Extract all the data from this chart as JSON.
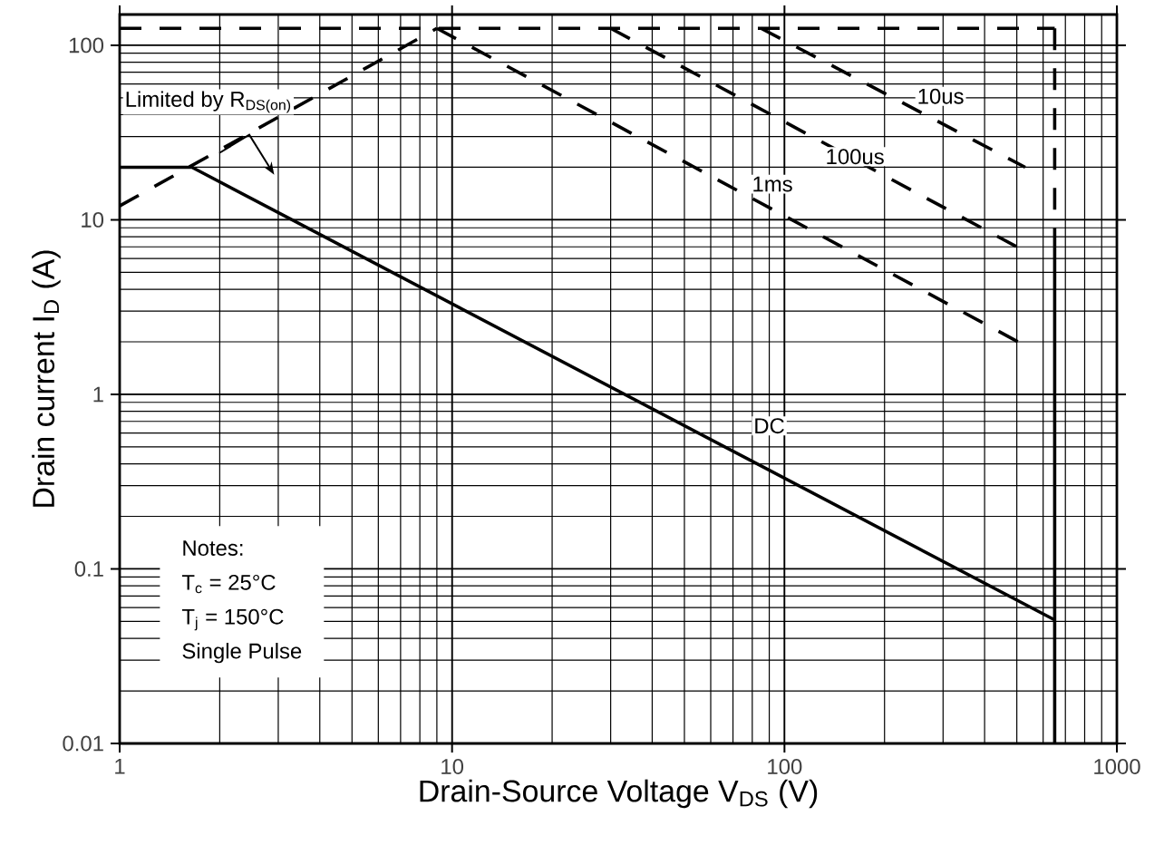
{
  "chart_data": {
    "type": "line",
    "xlabel": "Drain-Source Voltage V$_{DS}$ (V)",
    "ylabel": "Drain current I$_{D}$ (A)",
    "log": "xy",
    "grid": true,
    "marker": "none",
    "xlim": [
      1,
      1000
    ],
    "ylim": [
      0.01,
      150
    ],
    "xticks": [
      1,
      10,
      100,
      1000
    ],
    "yticks": [
      0.01,
      0.1,
      1,
      10,
      100
    ],
    "series": [
      {
        "color": "#000000",
        "line_style": "dashed",
        "x": [
          1,
          9
        ],
        "values": [
          12,
          125
        ]
      },
      {
        "color": "#000000",
        "line_style": "dashed",
        "x": [
          1,
          650
        ],
        "values": [
          125,
          125
        ]
      },
      {
        "color": "#000000",
        "line_style": "dashed",
        "x": [
          650,
          650
        ],
        "values": [
          125,
          7
        ]
      },
      {
        "color": "#000000",
        "line_style": "solid",
        "x": [
          650,
          650
        ],
        "values": [
          7,
          0.01
        ]
      },
      {
        "color": "#000000",
        "line_style": "solid",
        "x": [
          1,
          1.65,
          650
        ],
        "values": [
          20,
          20,
          0.051
        ]
      },
      {
        "color": "#000000",
        "line_style": "dashed",
        "x": [
          85,
          530
        ],
        "values": [
          125,
          20
        ]
      },
      {
        "color": "#000000",
        "line_style": "dashed",
        "x": [
          30,
          530
        ],
        "values": [
          125,
          6.6
        ]
      },
      {
        "color": "#000000",
        "line_style": "dashed",
        "x": [
          9,
          530
        ],
        "values": [
          125,
          1.9
        ]
      }
    ],
    "annotations": [
      "Limited by R$_{DS(on)}$",
      {
        "text": "10us",
        "x": 295,
        "y": 51
      },
      {
        "text": "100us",
        "x": 163,
        "y": 23
      },
      {
        "text": "1ms",
        "x": 92,
        "y": 16
      },
      {
        "text": "DC",
        "x": 90,
        "y": 0.66
      },
      "Notes:",
      "T$_{c}$ = 25°C",
      "T$_{j}$ = 150°C",
      "Single Pulse"
    ]
  }
}
